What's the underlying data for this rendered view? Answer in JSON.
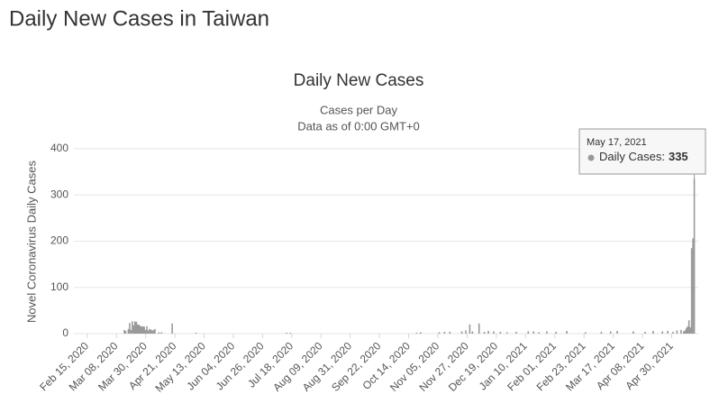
{
  "page_title": "Daily New Cases in Taiwan",
  "chart_data": {
    "type": "bar",
    "title": "Daily New Cases",
    "subtitle": "Cases per Day",
    "note": "Data as of 0:00 GMT+0",
    "ylabel": "Novel Coronavirus Daily Cases",
    "color": "#999999",
    "grid": true,
    "ylim": [
      0,
      400
    ],
    "yticks": [
      0,
      100,
      200,
      300,
      400
    ],
    "xlim": [
      "Feb 05, 2020",
      "May 20, 2021"
    ],
    "xticks": [
      "Feb 15, 2020",
      "Mar 08, 2020",
      "Mar 30, 2020",
      "Apr 21, 2020",
      "May 13, 2020",
      "Jun 04, 2020",
      "Jun 26, 2020",
      "Jul 18, 2020",
      "Aug 09, 2020",
      "Aug 31, 2020",
      "Sep 22, 2020",
      "Oct 14, 2020",
      "Nov 05, 2020",
      "Nov 27, 2020",
      "Dec 19, 2020",
      "Jan 10, 2021",
      "Feb 01, 2021",
      "Feb 23, 2021",
      "Mar 17, 2021",
      "Apr 08, 2021",
      "Apr 30, 2021"
    ],
    "x": [
      "Mar 14, 2020",
      "Mar 15, 2020",
      "Mar 17, 2020",
      "Mar 18, 2020",
      "Mar 19, 2020",
      "Mar 20, 2020",
      "Mar 21, 2020",
      "Mar 22, 2020",
      "Mar 23, 2020",
      "Mar 24, 2020",
      "Mar 25, 2020",
      "Mar 26, 2020",
      "Mar 27, 2020",
      "Mar 28, 2020",
      "Mar 29, 2020",
      "Mar 30, 2020",
      "Mar 31, 2020",
      "Apr 01, 2020",
      "Apr 02, 2020",
      "Apr 03, 2020",
      "Apr 04, 2020",
      "Apr 05, 2020",
      "Apr 06, 2020",
      "Apr 09, 2020",
      "Apr 11, 2020",
      "Apr 19, 2020",
      "May 07, 2020",
      "Jul 14, 2020",
      "Jul 17, 2020",
      "Oct 20, 2020",
      "Oct 23, 2020",
      "Nov 06, 2020",
      "Nov 10, 2020",
      "Nov 14, 2020",
      "Nov 23, 2020",
      "Nov 26, 2020",
      "Nov 29, 2020",
      "Dec 01, 2020",
      "Dec 06, 2020",
      "Dec 10, 2020",
      "Dec 13, 2020",
      "Dec 17, 2020",
      "Dec 22, 2020",
      "Dec 27, 2020",
      "Jan 03, 2021",
      "Jan 12, 2021",
      "Jan 16, 2021",
      "Jan 20, 2021",
      "Jan 26, 2021",
      "Feb 02, 2021",
      "Feb 10, 2021",
      "Feb 24, 2021",
      "Mar 08, 2021",
      "Mar 15, 2021",
      "Mar 20, 2021",
      "Apr 01, 2021",
      "Apr 10, 2021",
      "Apr 16, 2021",
      "Apr 23, 2021",
      "Apr 27, 2021",
      "May 01, 2021",
      "May 04, 2021",
      "May 07, 2021",
      "May 09, 2021",
      "May 10, 2021",
      "May 11, 2021",
      "May 12, 2021",
      "May 13, 2021",
      "May 14, 2021",
      "May 15, 2021",
      "May 16, 2021",
      "May 17, 2021"
    ],
    "values": [
      8,
      6,
      10,
      23,
      8,
      27,
      18,
      26,
      26,
      20,
      19,
      17,
      15,
      16,
      15,
      8,
      16,
      7,
      10,
      9,
      7,
      8,
      10,
      3,
      3,
      22,
      2,
      2,
      2,
      2,
      3,
      3,
      4,
      4,
      5,
      7,
      20,
      5,
      22,
      4,
      6,
      5,
      4,
      3,
      4,
      5,
      5,
      3,
      5,
      4,
      6,
      3,
      4,
      5,
      6,
      5,
      4,
      6,
      5,
      6,
      4,
      7,
      8,
      5,
      7,
      12,
      16,
      29,
      14,
      185,
      206,
      335
    ],
    "tooltip": {
      "date": "May 17, 2021",
      "label": "Daily Cases:"
    }
  }
}
